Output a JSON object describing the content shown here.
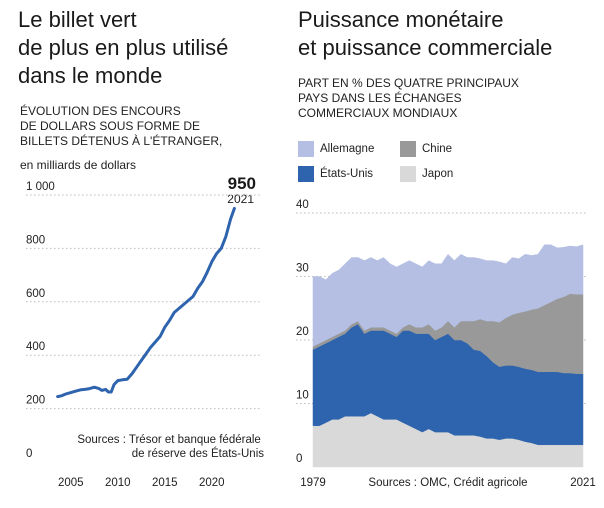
{
  "left": {
    "title": "Le billet vert\nde plus en plus utilisé\ndans le monde",
    "subtitle": "ÉVOLUTION DES ENCOURS\nDE DOLLARS SOUS FORME DE\nBILLETS DÉTENUS À L'ÉTRANGER,",
    "unit": "en milliards de dollars",
    "highlight_value": "950",
    "highlight_year": "2021",
    "source": "Sources : Trésor et banque fédérale\nde réserve des États-Unis"
  },
  "right": {
    "title": "Puissance monétaire\net puissance commerciale",
    "subtitle": "PART EN % DES QUATRE PRINCIPAUX\nPAYS DANS LES ÉCHANGES\nCOMMERCIAUX MONDIAUX",
    "source": "Sources : OMC, Crédit agricole"
  },
  "chart_data": [
    {
      "type": "line",
      "ylim": [
        0,
        1000
      ],
      "xlim": [
        2003,
        2023
      ],
      "y_ticks": [
        "0",
        "200",
        "400",
        "600",
        "800",
        "1 000"
      ],
      "y_tick_values": [
        0,
        200,
        400,
        600,
        800,
        1000
      ],
      "x_ticks": [
        "2005",
        "2010",
        "2015",
        "2020"
      ],
      "x_tick_values": [
        2005,
        2010,
        2015,
        2020
      ],
      "color": "#2e64ad",
      "series": [
        {
          "x": [
            2003.6,
            2004.0,
            2004.5,
            2005.0,
            2005.5,
            2006.0,
            2006.5,
            2007.0,
            2007.5,
            2008.0,
            2008.3,
            2008.7,
            2009.0,
            2009.3,
            2009.6,
            2010.0,
            2010.5,
            2011.0,
            2011.5,
            2012.0,
            2012.5,
            2013.0,
            2013.5,
            2014.0,
            2014.5,
            2015.0,
            2015.5,
            2016.0,
            2016.5,
            2017.0,
            2017.5,
            2018.0,
            2018.5,
            2019.0,
            2019.5,
            2020.0,
            2020.5,
            2021.0,
            2021.5,
            2022.0,
            2022.4
          ],
          "values": [
            245,
            248,
            255,
            260,
            265,
            270,
            272,
            275,
            280,
            275,
            268,
            272,
            262,
            262,
            290,
            305,
            308,
            310,
            330,
            355,
            380,
            405,
            430,
            450,
            470,
            505,
            530,
            560,
            575,
            590,
            605,
            620,
            650,
            675,
            710,
            750,
            780,
            800,
            845,
            910,
            950
          ]
        }
      ]
    },
    {
      "type": "area",
      "stacked": true,
      "ylim": [
        0,
        40
      ],
      "y_ticks": [
        "0",
        "10",
        "20",
        "30",
        "40"
      ],
      "y_tick_values": [
        0,
        10,
        20,
        30,
        40
      ],
      "x_ticks": [
        "1979",
        "2021"
      ],
      "x_tick_values": [
        1979,
        2021
      ],
      "x": [
        1979,
        1980,
        1981,
        1982,
        1983,
        1984,
        1985,
        1986,
        1987,
        1988,
        1989,
        1990,
        1991,
        1992,
        1993,
        1994,
        1995,
        1996,
        1997,
        1998,
        1999,
        2000,
        2001,
        2002,
        2003,
        2004,
        2005,
        2006,
        2007,
        2008,
        2009,
        2010,
        2011,
        2012,
        2013,
        2014,
        2015,
        2016,
        2017,
        2018,
        2019,
        2020,
        2021
      ],
      "series": [
        {
          "name": "Japon",
          "color": "#d9d9d9",
          "values": [
            6.5,
            6.5,
            7,
            7.5,
            7.5,
            8,
            8,
            8,
            8,
            8.5,
            8,
            7.5,
            7.5,
            7.5,
            7,
            6.5,
            6,
            5.5,
            6,
            5.5,
            5.5,
            5.5,
            5,
            5,
            5,
            5,
            4.8,
            4.5,
            4.5,
            4.3,
            4.5,
            4.5,
            4.3,
            4,
            3.8,
            3.5,
            3.5,
            3.5,
            3.5,
            3.5,
            3.5,
            3.5,
            3.5
          ]
        },
        {
          "name": "États-Unis",
          "color": "#2e64ad",
          "values": [
            12,
            12.5,
            12.5,
            12.5,
            13,
            13,
            14,
            14.5,
            13,
            13,
            13.5,
            14,
            13.5,
            13,
            14.5,
            15,
            15,
            15.5,
            15,
            14.5,
            15,
            15.5,
            15,
            15,
            14.5,
            13.5,
            13.5,
            13,
            12,
            11.5,
            11.5,
            11.5,
            11.5,
            11.5,
            11.5,
            11.5,
            11.5,
            11.5,
            11.5,
            11.3,
            11.3,
            11.2,
            11.2
          ]
        },
        {
          "name": "Chine",
          "color": "#999999",
          "values": [
            0.5,
            0.5,
            0.5,
            0.5,
            0.5,
            0.5,
            0.5,
            0.5,
            0.5,
            0.5,
            0.5,
            0.5,
            0.5,
            0.5,
            0.5,
            1,
            1,
            1,
            1.5,
            1.5,
            1.5,
            2,
            2,
            3,
            3.5,
            4.5,
            5,
            5.5,
            6.5,
            7,
            7.5,
            8,
            8.5,
            9,
            9.5,
            10,
            10.5,
            11,
            11.5,
            12,
            12.5,
            12.5,
            12.5
          ]
        },
        {
          "name": "Allemagne",
          "color": "#b4bfe3",
          "values": [
            11,
            10.5,
            9.5,
            10,
            10,
            10.5,
            10.5,
            10,
            11,
            11,
            10.5,
            11,
            10.5,
            10.5,
            10,
            10,
            10,
            9.5,
            10,
            10.5,
            10,
            10.5,
            10.5,
            10.5,
            10,
            10,
            9.5,
            9.5,
            9.5,
            9.5,
            8.5,
            9,
            8.5,
            9,
            8.5,
            8.5,
            9.5,
            9,
            8,
            7.8,
            7.5,
            7.5,
            7.8
          ]
        }
      ]
    }
  ]
}
